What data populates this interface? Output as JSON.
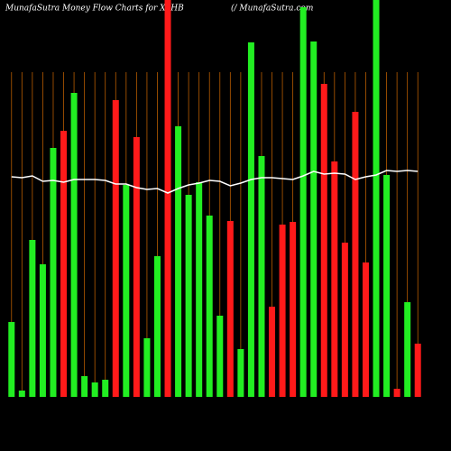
{
  "chart_data": {
    "type": "bar",
    "title": "MunafaSutra  Money Flow  Charts for X4HB",
    "subtitle": "(/ MunafaSutra.com",
    "categories": [
      null,
      null,
      null,
      null,
      null,
      null,
      null,
      null,
      null,
      null,
      null,
      null,
      null,
      null,
      null,
      null,
      null,
      null,
      null,
      null,
      null,
      null,
      null,
      null,
      null,
      null,
      null,
      null,
      null,
      null,
      null,
      null,
      null,
      null,
      null,
      null,
      null,
      null,
      null,
      null
    ],
    "values": [
      83,
      7,
      174,
      147,
      276,
      295,
      337,
      23,
      16,
      19,
      329,
      235,
      288,
      65,
      156,
      440,
      300,
      224,
      238,
      201,
      90,
      195,
      53,
      393,
      267,
      100,
      191,
      194,
      432,
      394,
      347,
      261,
      171,
      316,
      149,
      440,
      246,
      9,
      105,
      59
    ],
    "colors": [
      "#22ee22",
      "#22ee22",
      "#22ee22",
      "#22ee22",
      "#22ee22",
      "#ff1a1a",
      "#22ee22",
      "#22ee22",
      "#22ee22",
      "#22ee22",
      "#ff1a1a",
      "#22ee22",
      "#ff1a1a",
      "#22ee22",
      "#22ee22",
      "#ff1a1a",
      "#22ee22",
      "#22ee22",
      "#22ee22",
      "#22ee22",
      "#22ee22",
      "#ff1a1a",
      "#22ee22",
      "#22ee22",
      "#22ee22",
      "#ff1a1a",
      "#ff1a1a",
      "#ff1a1a",
      "#22ee22",
      "#22ee22",
      "#ff1a1a",
      "#ff1a1a",
      "#ff1a1a",
      "#ff1a1a",
      "#ff1a1a",
      "#22ee22",
      "#22ee22",
      "#ff1a1a",
      "#22ee22",
      "#ff1a1a"
    ],
    "line": {
      "color": "#ffffff",
      "values": [
        244,
        243,
        245,
        239,
        240,
        238,
        241,
        241,
        241,
        240,
        236,
        236,
        232,
        230,
        231,
        226,
        231,
        235,
        237,
        240,
        239,
        234,
        237,
        241,
        243,
        243,
        242,
        241,
        245,
        250,
        247,
        248,
        247,
        241,
        244,
        246,
        251,
        250,
        251,
        250
      ]
    },
    "ylim": [
      0,
      440
    ],
    "grid_color": "#b85c00"
  }
}
